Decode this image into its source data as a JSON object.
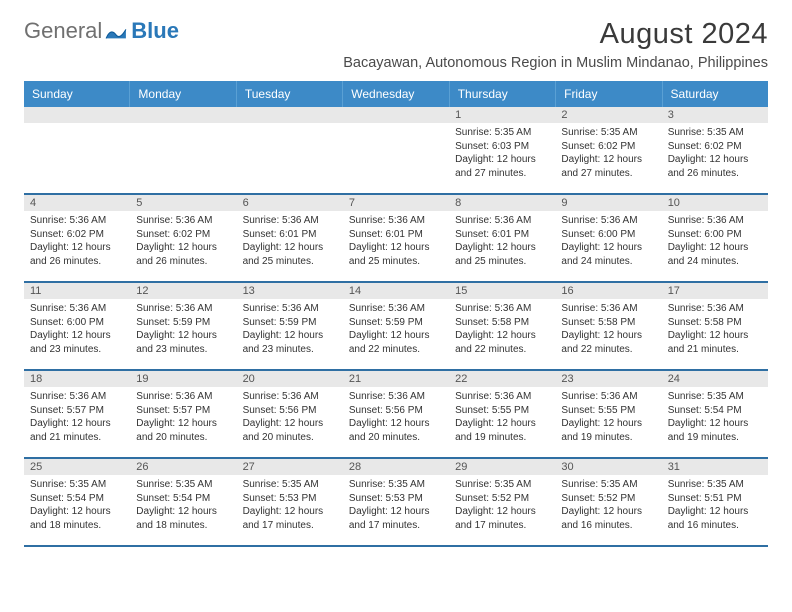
{
  "logo": {
    "part1": "General",
    "part2": "Blue"
  },
  "title": "August 2024",
  "location": "Bacayawan, Autonomous Region in Muslim Mindanao, Philippines",
  "colors": {
    "header_bg": "#3d8ac7",
    "daynum_bg": "#e8e8e8",
    "row_border": "#2f6fa3",
    "logo_gray": "#707070",
    "logo_blue": "#2a78b8"
  },
  "weekdays": [
    "Sunday",
    "Monday",
    "Tuesday",
    "Wednesday",
    "Thursday",
    "Friday",
    "Saturday"
  ],
  "weeks": [
    [
      {
        "n": "",
        "sr": "",
        "ss": "",
        "dl": ""
      },
      {
        "n": "",
        "sr": "",
        "ss": "",
        "dl": ""
      },
      {
        "n": "",
        "sr": "",
        "ss": "",
        "dl": ""
      },
      {
        "n": "",
        "sr": "",
        "ss": "",
        "dl": ""
      },
      {
        "n": "1",
        "sr": "Sunrise: 5:35 AM",
        "ss": "Sunset: 6:03 PM",
        "dl": "Daylight: 12 hours\nand 27 minutes."
      },
      {
        "n": "2",
        "sr": "Sunrise: 5:35 AM",
        "ss": "Sunset: 6:02 PM",
        "dl": "Daylight: 12 hours\nand 27 minutes."
      },
      {
        "n": "3",
        "sr": "Sunrise: 5:35 AM",
        "ss": "Sunset: 6:02 PM",
        "dl": "Daylight: 12 hours\nand 26 minutes."
      }
    ],
    [
      {
        "n": "4",
        "sr": "Sunrise: 5:36 AM",
        "ss": "Sunset: 6:02 PM",
        "dl": "Daylight: 12 hours\nand 26 minutes."
      },
      {
        "n": "5",
        "sr": "Sunrise: 5:36 AM",
        "ss": "Sunset: 6:02 PM",
        "dl": "Daylight: 12 hours\nand 26 minutes."
      },
      {
        "n": "6",
        "sr": "Sunrise: 5:36 AM",
        "ss": "Sunset: 6:01 PM",
        "dl": "Daylight: 12 hours\nand 25 minutes."
      },
      {
        "n": "7",
        "sr": "Sunrise: 5:36 AM",
        "ss": "Sunset: 6:01 PM",
        "dl": "Daylight: 12 hours\nand 25 minutes."
      },
      {
        "n": "8",
        "sr": "Sunrise: 5:36 AM",
        "ss": "Sunset: 6:01 PM",
        "dl": "Daylight: 12 hours\nand 25 minutes."
      },
      {
        "n": "9",
        "sr": "Sunrise: 5:36 AM",
        "ss": "Sunset: 6:00 PM",
        "dl": "Daylight: 12 hours\nand 24 minutes."
      },
      {
        "n": "10",
        "sr": "Sunrise: 5:36 AM",
        "ss": "Sunset: 6:00 PM",
        "dl": "Daylight: 12 hours\nand 24 minutes."
      }
    ],
    [
      {
        "n": "11",
        "sr": "Sunrise: 5:36 AM",
        "ss": "Sunset: 6:00 PM",
        "dl": "Daylight: 12 hours\nand 23 minutes."
      },
      {
        "n": "12",
        "sr": "Sunrise: 5:36 AM",
        "ss": "Sunset: 5:59 PM",
        "dl": "Daylight: 12 hours\nand 23 minutes."
      },
      {
        "n": "13",
        "sr": "Sunrise: 5:36 AM",
        "ss": "Sunset: 5:59 PM",
        "dl": "Daylight: 12 hours\nand 23 minutes."
      },
      {
        "n": "14",
        "sr": "Sunrise: 5:36 AM",
        "ss": "Sunset: 5:59 PM",
        "dl": "Daylight: 12 hours\nand 22 minutes."
      },
      {
        "n": "15",
        "sr": "Sunrise: 5:36 AM",
        "ss": "Sunset: 5:58 PM",
        "dl": "Daylight: 12 hours\nand 22 minutes."
      },
      {
        "n": "16",
        "sr": "Sunrise: 5:36 AM",
        "ss": "Sunset: 5:58 PM",
        "dl": "Daylight: 12 hours\nand 22 minutes."
      },
      {
        "n": "17",
        "sr": "Sunrise: 5:36 AM",
        "ss": "Sunset: 5:58 PM",
        "dl": "Daylight: 12 hours\nand 21 minutes."
      }
    ],
    [
      {
        "n": "18",
        "sr": "Sunrise: 5:36 AM",
        "ss": "Sunset: 5:57 PM",
        "dl": "Daylight: 12 hours\nand 21 minutes."
      },
      {
        "n": "19",
        "sr": "Sunrise: 5:36 AM",
        "ss": "Sunset: 5:57 PM",
        "dl": "Daylight: 12 hours\nand 20 minutes."
      },
      {
        "n": "20",
        "sr": "Sunrise: 5:36 AM",
        "ss": "Sunset: 5:56 PM",
        "dl": "Daylight: 12 hours\nand 20 minutes."
      },
      {
        "n": "21",
        "sr": "Sunrise: 5:36 AM",
        "ss": "Sunset: 5:56 PM",
        "dl": "Daylight: 12 hours\nand 20 minutes."
      },
      {
        "n": "22",
        "sr": "Sunrise: 5:36 AM",
        "ss": "Sunset: 5:55 PM",
        "dl": "Daylight: 12 hours\nand 19 minutes."
      },
      {
        "n": "23",
        "sr": "Sunrise: 5:36 AM",
        "ss": "Sunset: 5:55 PM",
        "dl": "Daylight: 12 hours\nand 19 minutes."
      },
      {
        "n": "24",
        "sr": "Sunrise: 5:35 AM",
        "ss": "Sunset: 5:54 PM",
        "dl": "Daylight: 12 hours\nand 19 minutes."
      }
    ],
    [
      {
        "n": "25",
        "sr": "Sunrise: 5:35 AM",
        "ss": "Sunset: 5:54 PM",
        "dl": "Daylight: 12 hours\nand 18 minutes."
      },
      {
        "n": "26",
        "sr": "Sunrise: 5:35 AM",
        "ss": "Sunset: 5:54 PM",
        "dl": "Daylight: 12 hours\nand 18 minutes."
      },
      {
        "n": "27",
        "sr": "Sunrise: 5:35 AM",
        "ss": "Sunset: 5:53 PM",
        "dl": "Daylight: 12 hours\nand 17 minutes."
      },
      {
        "n": "28",
        "sr": "Sunrise: 5:35 AM",
        "ss": "Sunset: 5:53 PM",
        "dl": "Daylight: 12 hours\nand 17 minutes."
      },
      {
        "n": "29",
        "sr": "Sunrise: 5:35 AM",
        "ss": "Sunset: 5:52 PM",
        "dl": "Daylight: 12 hours\nand 17 minutes."
      },
      {
        "n": "30",
        "sr": "Sunrise: 5:35 AM",
        "ss": "Sunset: 5:52 PM",
        "dl": "Daylight: 12 hours\nand 16 minutes."
      },
      {
        "n": "31",
        "sr": "Sunrise: 5:35 AM",
        "ss": "Sunset: 5:51 PM",
        "dl": "Daylight: 12 hours\nand 16 minutes."
      }
    ]
  ]
}
